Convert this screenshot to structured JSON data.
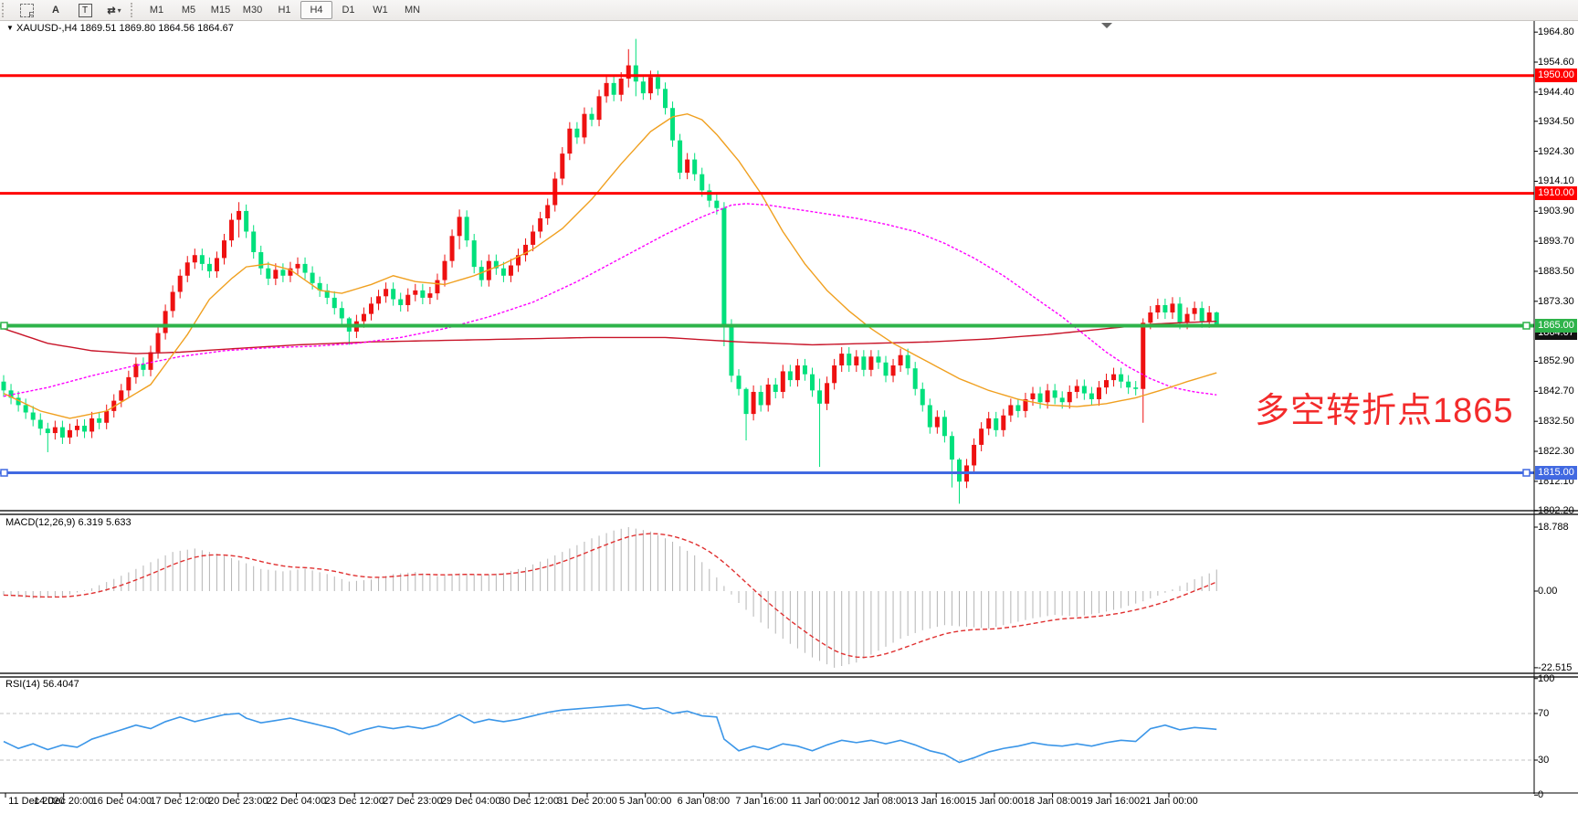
{
  "toolbar": {
    "icons": [
      {
        "id": "dashed-select-f-icon",
        "glyph": "F"
      },
      {
        "id": "text-annotation-icon",
        "glyph": "A"
      },
      {
        "id": "text-label-icon",
        "glyph": "T"
      },
      {
        "id": "arrow-tools-icon",
        "glyph": "⇄"
      }
    ],
    "dropdown_glyph": "▾",
    "timeframes": [
      {
        "label": "M1",
        "active": false
      },
      {
        "label": "M5",
        "active": false
      },
      {
        "label": "M15",
        "active": false
      },
      {
        "label": "M30",
        "active": false
      },
      {
        "label": "H1",
        "active": false
      },
      {
        "label": "H4",
        "active": true
      },
      {
        "label": "D1",
        "active": false
      },
      {
        "label": "W1",
        "active": false
      },
      {
        "label": "MN",
        "active": false
      }
    ]
  },
  "header": {
    "symbol_title": "XAUUSD-,H4  1869.51 1869.80 1864.56 1864.67",
    "collapse_glyph": "▼"
  },
  "colors": {
    "candle_up": "#ee1111",
    "candle_down": "#00e07c",
    "level_red": "#ff0000",
    "level_green": "#2eb34a",
    "level_blue": "#4169e1",
    "ma_orange": "#f0a020",
    "ma_magenta": "#ff00ff",
    "ma_darkred": "#c81428",
    "macd_hist": "#b4b4b4",
    "macd_signal": "#e03030",
    "rsi_line": "#3b96e8",
    "annotation_red": "#f32b2b",
    "bid_badge_bg": "#111111"
  },
  "chart_data": {
    "type": "candlestick+indicators",
    "title": "XAUUSD-,H4 1869.51 1869.80 1864.56 1864.67",
    "price_pane": {
      "first_open": 1846,
      "default_wick": 2.2,
      "closes": [
        1843,
        1840.5,
        1838,
        1835.5,
        1833,
        1830,
        1828.5,
        1830.5,
        1827,
        1829.5,
        1831,
        1829,
        1833.5,
        1832,
        1836,
        1839.5,
        1843,
        1847.5,
        1852,
        1850,
        1856,
        1862.5,
        1870,
        1876.5,
        1882,
        1886.5,
        1889,
        1886,
        1883.5,
        1888,
        1894,
        1901,
        1904,
        1897,
        1890,
        1884.5,
        1881,
        1884,
        1882,
        1884.5,
        1886,
        1883,
        1879.5,
        1877,
        1874.5,
        1871,
        1867.5,
        1863,
        1866.5,
        1869,
        1872.5,
        1875,
        1877.5,
        1874,
        1872,
        1875.5,
        1877,
        1874.5,
        1876,
        1880.5,
        1887,
        1895.5,
        1902,
        1894,
        1885,
        1880.5,
        1887,
        1884.5,
        1882,
        1885.5,
        1889,
        1892.5,
        1897,
        1901.5,
        1906,
        1915,
        1923.5,
        1932,
        1929,
        1937,
        1935,
        1943,
        1947.5,
        1943.5,
        1949,
        1953.5,
        1948,
        1944,
        1949.5,
        1945.5,
        1939,
        1928,
        1917,
        1921.5,
        1916.5,
        1911,
        1907.5,
        1905,
        1865,
        1848,
        1843.5,
        1835,
        1842.5,
        1838,
        1845,
        1842.5,
        1849.5,
        1846.5,
        1851.5,
        1848.5,
        1843,
        1838.5,
        1845.5,
        1851.5,
        1855.5,
        1851.5,
        1854.5,
        1850,
        1854.5,
        1852.5,
        1848,
        1851.5,
        1855,
        1850.5,
        1843.5,
        1838,
        1830.5,
        1834,
        1827.5,
        1819.5,
        1812,
        1817.5,
        1824.5,
        1830,
        1833.5,
        1829.5,
        1834.5,
        1838,
        1836,
        1840,
        1842,
        1839,
        1843,
        1840.5,
        1839,
        1842.5,
        1844.5,
        1842,
        1840,
        1844,
        1846.5,
        1848.5,
        1846,
        1844,
        1843.5,
        1866,
        1869.5,
        1872,
        1869.5,
        1872.5,
        1866,
        1869,
        1871,
        1866.5,
        1869.5,
        1864.67
      ],
      "wick_overrides": {
        "6": [
          1832,
          1822
        ],
        "32": [
          1907,
          1895
        ],
        "47": [
          1868,
          1858.5
        ],
        "62": [
          1904.5,
          1891
        ],
        "85": [
          1959,
          1946
        ],
        "86": [
          1962.5,
          1943
        ],
        "98": [
          1907,
          1858
        ],
        "101": [
          1844,
          1826
        ],
        "111": [
          1847,
          1817
        ],
        "129": [
          1829,
          1810
        ],
        "130": [
          1820,
          1804.5
        ],
        "155": [
          1867.5,
          1832
        ],
        "165": [
          1869.8,
          1864.56
        ]
      },
      "ma_orange": [
        [
          0,
          1842
        ],
        [
          5,
          1836
        ],
        [
          9,
          1833.5
        ],
        [
          14,
          1836
        ],
        [
          20,
          1845
        ],
        [
          25,
          1862
        ],
        [
          28,
          1874
        ],
        [
          31,
          1881
        ],
        [
          33,
          1885
        ],
        [
          36,
          1886
        ],
        [
          39,
          1884
        ],
        [
          43,
          1877
        ],
        [
          46,
          1876
        ],
        [
          50,
          1879
        ],
        [
          53,
          1882
        ],
        [
          56,
          1880
        ],
        [
          60,
          1879
        ],
        [
          64,
          1882
        ],
        [
          68,
          1886
        ],
        [
          72,
          1891
        ],
        [
          76,
          1898
        ],
        [
          80,
          1908
        ],
        [
          84,
          1920
        ],
        [
          88,
          1931
        ],
        [
          91,
          1936
        ],
        [
          93,
          1937
        ],
        [
          95,
          1935
        ],
        [
          97,
          1930
        ],
        [
          100,
          1921
        ],
        [
          103,
          1910
        ],
        [
          106,
          1897
        ],
        [
          109,
          1886
        ],
        [
          112,
          1877
        ],
        [
          115,
          1870
        ],
        [
          118,
          1864
        ],
        [
          121,
          1859
        ],
        [
          124,
          1855
        ],
        [
          127,
          1851
        ],
        [
          130,
          1847
        ],
        [
          134,
          1843
        ],
        [
          138,
          1840
        ],
        [
          142,
          1838
        ],
        [
          146,
          1837.5
        ],
        [
          150,
          1838.5
        ],
        [
          154,
          1840.5
        ],
        [
          158,
          1843.5
        ],
        [
          161,
          1846
        ],
        [
          165,
          1849
        ]
      ],
      "ma_magenta": [
        [
          0,
          1841
        ],
        [
          6,
          1844
        ],
        [
          12,
          1848
        ],
        [
          18,
          1851.5
        ],
        [
          24,
          1854.5
        ],
        [
          30,
          1856.5
        ],
        [
          36,
          1857.5
        ],
        [
          42,
          1858
        ],
        [
          48,
          1859
        ],
        [
          54,
          1861
        ],
        [
          60,
          1864
        ],
        [
          66,
          1868
        ],
        [
          72,
          1873
        ],
        [
          78,
          1880
        ],
        [
          84,
          1888
        ],
        [
          90,
          1896
        ],
        [
          95,
          1902
        ],
        [
          99,
          1906
        ],
        [
          101,
          1906.5
        ],
        [
          104,
          1906
        ],
        [
          108,
          1904.5
        ],
        [
          112,
          1903
        ],
        [
          116,
          1901.5
        ],
        [
          120,
          1899.5
        ],
        [
          124,
          1897
        ],
        [
          128,
          1893
        ],
        [
          132,
          1888
        ],
        [
          136,
          1882
        ],
        [
          140,
          1875
        ],
        [
          144,
          1868
        ],
        [
          147,
          1862
        ],
        [
          150,
          1856
        ],
        [
          153,
          1851
        ],
        [
          156,
          1847
        ],
        [
          159,
          1844
        ],
        [
          162,
          1842.5
        ],
        [
          165,
          1841.5
        ]
      ],
      "ma_darkred": [
        [
          0,
          1864
        ],
        [
          6,
          1859
        ],
        [
          12,
          1856.5
        ],
        [
          18,
          1855.5
        ],
        [
          24,
          1856
        ],
        [
          30,
          1857
        ],
        [
          40,
          1858.5
        ],
        [
          50,
          1859.5
        ],
        [
          60,
          1860
        ],
        [
          70,
          1860.5
        ],
        [
          80,
          1861
        ],
        [
          90,
          1861
        ],
        [
          100,
          1859.5
        ],
        [
          110,
          1858.5
        ],
        [
          118,
          1859
        ],
        [
          126,
          1859.5
        ],
        [
          134,
          1860.5
        ],
        [
          142,
          1862
        ],
        [
          148,
          1863.5
        ],
        [
          152,
          1864.5
        ],
        [
          156,
          1865.5
        ],
        [
          160,
          1866
        ],
        [
          165,
          1866.5
        ]
      ],
      "levels": [
        {
          "price": 1950,
          "label": "1950.00",
          "color": "#ff0000",
          "thickness": 3
        },
        {
          "price": 1910,
          "label": "1910.00",
          "color": "#ff0000",
          "thickness": 3
        },
        {
          "price": 1865,
          "label": "1865.00",
          "color": "#2eb34a",
          "thickness": 4
        },
        {
          "price": 1815,
          "label": "1815.00",
          "color": "#4169e1",
          "thickness": 3
        }
      ],
      "bid_badge": {
        "label": "1864.67"
      },
      "ticks": [
        "1964.80",
        "1954.60",
        "1944.40",
        "1934.50",
        "1924.30",
        "1914.10",
        "1903.90",
        "1893.70",
        "1883.50",
        "1873.30",
        "1852.90",
        "1842.70",
        "1832.50",
        "1822.30",
        "1812.10",
        "1802.20"
      ],
      "annotation": {
        "text": "多空转折点1865"
      }
    },
    "macd_pane": {
      "label": "MACD(12,26,9) 6.319 5.633",
      "values_waypoints": [
        [
          0,
          -1.2
        ],
        [
          4,
          -2.2
        ],
        [
          8,
          -1.6
        ],
        [
          12,
          0.8
        ],
        [
          16,
          4.5
        ],
        [
          20,
          8.5
        ],
        [
          23,
          11.5
        ],
        [
          26,
          12.5
        ],
        [
          29,
          11
        ],
        [
          32,
          9
        ],
        [
          35,
          6.5
        ],
        [
          38,
          5.8
        ],
        [
          41,
          6.6
        ],
        [
          44,
          5
        ],
        [
          47,
          2.8
        ],
        [
          50,
          3.4
        ],
        [
          53,
          5
        ],
        [
          56,
          5.6
        ],
        [
          59,
          4.4
        ],
        [
          62,
          5.2
        ],
        [
          65,
          4.6
        ],
        [
          68,
          5.4
        ],
        [
          71,
          7
        ],
        [
          74,
          9.5
        ],
        [
          77,
          12.5
        ],
        [
          80,
          15.5
        ],
        [
          83,
          17.8
        ],
        [
          85,
          18.788
        ],
        [
          88,
          17.5
        ],
        [
          91,
          14.5
        ],
        [
          94,
          10.5
        ],
        [
          96,
          6.5
        ],
        [
          98,
          1.5
        ],
        [
          100,
          -3.5
        ],
        [
          102,
          -7.5
        ],
        [
          104,
          -11
        ],
        [
          107,
          -15.5
        ],
        [
          110,
          -19.5
        ],
        [
          113,
          -22.515
        ],
        [
          116,
          -21
        ],
        [
          119,
          -17.5
        ],
        [
          122,
          -14
        ],
        [
          125,
          -11.5
        ],
        [
          128,
          -10
        ],
        [
          131,
          -10.5
        ],
        [
          134,
          -11
        ],
        [
          137,
          -9.5
        ],
        [
          140,
          -8
        ],
        [
          143,
          -7
        ],
        [
          146,
          -7.5
        ],
        [
          149,
          -6.5
        ],
        [
          152,
          -5
        ],
        [
          155,
          -3
        ],
        [
          158,
          -0.5
        ],
        [
          160,
          1.5
        ],
        [
          162,
          3.5
        ],
        [
          164,
          5.2
        ],
        [
          165,
          6.319
        ]
      ],
      "ticks": [
        "18.788",
        "0.00",
        "-22.515"
      ]
    },
    "rsi_pane": {
      "label": "RSI(14) 56.4047",
      "values_waypoints": [
        [
          0,
          46
        ],
        [
          2,
          40
        ],
        [
          4,
          44
        ],
        [
          6,
          39
        ],
        [
          8,
          43
        ],
        [
          10,
          41
        ],
        [
          12,
          48
        ],
        [
          14,
          52
        ],
        [
          16,
          56
        ],
        [
          18,
          60
        ],
        [
          20,
          57
        ],
        [
          22,
          63
        ],
        [
          24,
          67
        ],
        [
          26,
          63
        ],
        [
          28,
          66
        ],
        [
          30,
          69
        ],
        [
          32,
          70
        ],
        [
          33,
          66
        ],
        [
          35,
          62
        ],
        [
          37,
          64
        ],
        [
          39,
          66
        ],
        [
          41,
          63
        ],
        [
          43,
          60
        ],
        [
          45,
          57
        ],
        [
          47,
          52
        ],
        [
          49,
          56
        ],
        [
          51,
          59
        ],
        [
          53,
          57
        ],
        [
          55,
          59
        ],
        [
          57,
          57
        ],
        [
          59,
          60
        ],
        [
          61,
          66
        ],
        [
          62,
          69
        ],
        [
          64,
          62
        ],
        [
          66,
          65
        ],
        [
          68,
          63
        ],
        [
          70,
          65
        ],
        [
          72,
          68
        ],
        [
          74,
          71
        ],
        [
          76,
          73
        ],
        [
          78,
          74
        ],
        [
          80,
          75
        ],
        [
          82,
          76
        ],
        [
          84,
          77
        ],
        [
          85,
          77.5
        ],
        [
          87,
          74
        ],
        [
          89,
          75
        ],
        [
          91,
          70
        ],
        [
          93,
          72
        ],
        [
          95,
          68
        ],
        [
          97,
          67
        ],
        [
          98,
          48
        ],
        [
          100,
          38
        ],
        [
          102,
          42
        ],
        [
          104,
          39
        ],
        [
          106,
          44
        ],
        [
          108,
          42
        ],
        [
          110,
          38
        ],
        [
          112,
          43
        ],
        [
          114,
          47
        ],
        [
          116,
          45
        ],
        [
          118,
          47
        ],
        [
          120,
          44
        ],
        [
          122,
          47
        ],
        [
          124,
          43
        ],
        [
          126,
          38
        ],
        [
          128,
          35
        ],
        [
          130,
          28
        ],
        [
          132,
          32
        ],
        [
          134,
          37
        ],
        [
          136,
          40
        ],
        [
          138,
          42
        ],
        [
          140,
          45
        ],
        [
          142,
          43
        ],
        [
          144,
          42
        ],
        [
          146,
          44
        ],
        [
          148,
          42
        ],
        [
          150,
          45
        ],
        [
          152,
          47
        ],
        [
          154,
          46
        ],
        [
          156,
          57
        ],
        [
          158,
          60
        ],
        [
          160,
          56
        ],
        [
          162,
          58
        ],
        [
          164,
          57
        ],
        [
          165,
          56.4
        ]
      ],
      "ticks": [
        "100",
        "70",
        "30",
        "0"
      ],
      "dashed_levels": [
        70,
        30
      ]
    },
    "x_axis": {
      "labels": [
        "11 Dec 2020",
        "14 Dec 20:00",
        "16 Dec 04:00",
        "17 Dec 12:00",
        "20 Dec 23:00",
        "22 Dec 04:00",
        "23 Dec 12:00",
        "27 Dec 23:00",
        "29 Dec 04:00",
        "30 Dec 12:00",
        "31 Dec 20:00",
        "5 Jan 00:00",
        "6 Jan 08:00",
        "7 Jan 16:00",
        "11 Jan 00:00",
        "12 Jan 08:00",
        "13 Jan 16:00",
        "15 Jan 00:00",
        "18 Jan 08:00",
        "19 Jan 16:00",
        "21 Jan 00:00"
      ]
    }
  }
}
